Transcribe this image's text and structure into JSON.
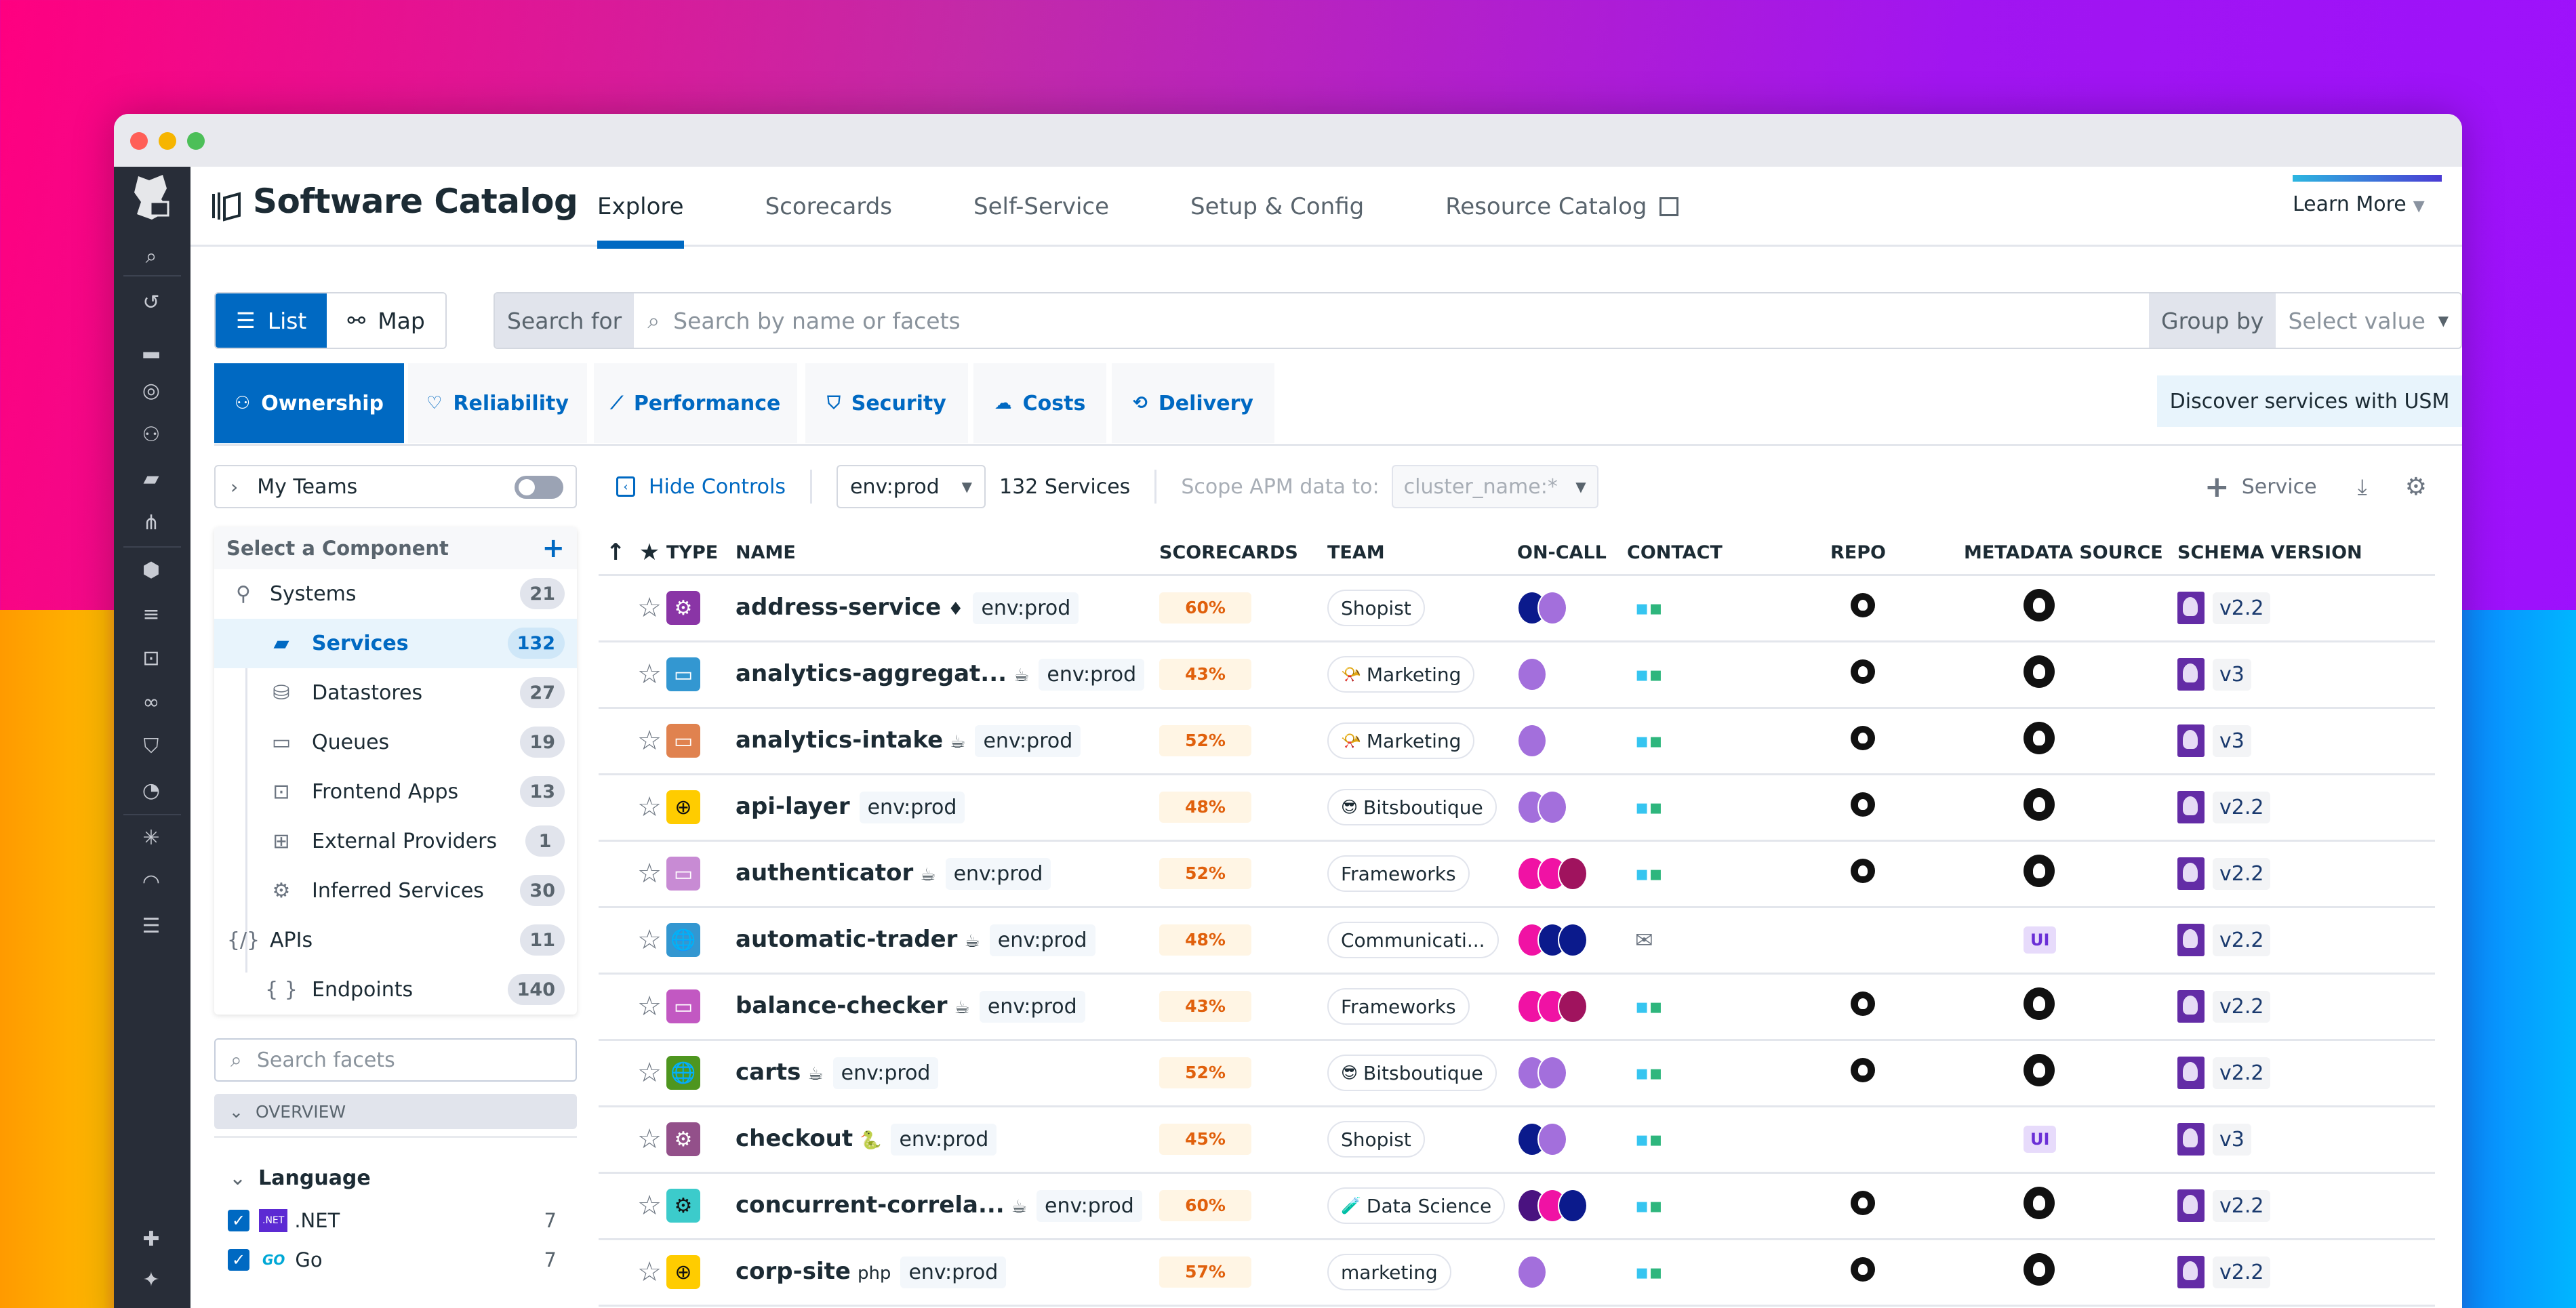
{
  "window": {
    "traffic_lights": [
      "close",
      "minimize",
      "maximize"
    ]
  },
  "nav": {
    "icons": [
      "search-icon",
      "history-icon",
      "dashboards-icon",
      "monitors-icon",
      "watchdog-icon",
      "software-catalog-icon",
      "pipelines-icon",
      "infrastructure-icon",
      "logs-icon",
      "frontend-icon",
      "synthetics-icon",
      "security-icon",
      "ci-icon",
      "bug-icon",
      "performance-icon",
      "observability-pipelines-icon",
      "integrations-icon",
      "sparkle-icon"
    ]
  },
  "header": {
    "title": "Software Catalog",
    "tabs": [
      {
        "label": "Explore",
        "active": true
      },
      {
        "label": "Scorecards"
      },
      {
        "label": "Self-Service"
      },
      {
        "label": "Setup & Config"
      },
      {
        "label": "Resource Catalog",
        "external": true
      }
    ],
    "learn_more": "Learn More"
  },
  "toolbar": {
    "view_list": "List",
    "view_map": "Map",
    "search_label": "Search for",
    "search_placeholder": "Search by name or facets",
    "group_by_label": "Group by",
    "group_by_placeholder": "Select value"
  },
  "category_tabs": [
    {
      "label": "Ownership",
      "icon": "people-icon",
      "active": true
    },
    {
      "label": "Reliability",
      "icon": "heartbeat-icon"
    },
    {
      "label": "Performance",
      "icon": "chart-line-icon"
    },
    {
      "label": "Security",
      "icon": "shield-icon"
    },
    {
      "label": "Costs",
      "icon": "cloud-dollar-icon"
    },
    {
      "label": "Delivery",
      "icon": "delivery-icon"
    }
  ],
  "discover_usm": "Discover services with USM",
  "left_panel": {
    "my_teams": "My Teams",
    "component_header": "Select a Component",
    "components": [
      {
        "label": "Systems",
        "count": "21",
        "level": 1,
        "icon": "hierarchy-icon"
      },
      {
        "label": "Services",
        "count": "132",
        "level": 2,
        "icon": "services-icon",
        "active": true
      },
      {
        "label": "Datastores",
        "count": "27",
        "level": 2,
        "icon": "database-icon"
      },
      {
        "label": "Queues",
        "count": "19",
        "level": 2,
        "icon": "queue-icon"
      },
      {
        "label": "Frontend Apps",
        "count": "13",
        "level": 2,
        "icon": "frontend-app-icon"
      },
      {
        "label": "External Providers",
        "count": "1",
        "level": 2,
        "icon": "external-provider-icon"
      },
      {
        "label": "Inferred Services",
        "count": "30",
        "level": 2,
        "icon": "gears-icon"
      },
      {
        "label": "APIs",
        "count": "11",
        "level": 1,
        "icon": "api-icon"
      },
      {
        "label": "Endpoints",
        "count": "140",
        "level": 2,
        "icon": "braces-icon"
      }
    ],
    "facet_search_placeholder": "Search facets",
    "overview": "OVERVIEW",
    "language_header": "Language",
    "languages": [
      {
        "label": ".NET",
        "badge": ".NET",
        "count": "7",
        "checked": true
      },
      {
        "label": "Go",
        "badge": "GO",
        "count": "7",
        "checked": true
      }
    ]
  },
  "controls": {
    "hide_controls": "Hide Controls",
    "env": "env:prod",
    "service_count": "132 Services",
    "scope_label": "Scope APM data to:",
    "scope_value": "cluster_name:*",
    "add_service": "Service"
  },
  "table": {
    "columns": [
      "",
      "",
      "TYPE",
      "NAME",
      "SCORECARDS",
      "TEAM",
      "ON-CALL",
      "CONTACT",
      "REPO",
      "METADATA SOURCE",
      "SCHEMA VERSION"
    ],
    "rows": [
      {
        "name": "address-service",
        "lang": "ruby",
        "env": "env:prod",
        "type_color": "#8a35a6",
        "type_icon": "gears",
        "score": "60%",
        "team": "Shopist",
        "team_emoji": "",
        "oncall": [
          "#0b1a8c",
          "#a36fdc"
        ],
        "contact": "slack",
        "repo": true,
        "metadata": "github",
        "schema": "v2.2"
      },
      {
        "name": "analytics-aggregat...",
        "lang": "java",
        "env": "env:prod",
        "type_color": "#3397d1",
        "type_icon": "queue",
        "score": "43%",
        "team": "Marketing",
        "team_emoji": "📯",
        "oncall": [
          "#a36fdc"
        ],
        "contact": "slack",
        "repo": true,
        "metadata": "github",
        "schema": "v3"
      },
      {
        "name": "analytics-intake",
        "lang": "java",
        "env": "env:prod",
        "type_color": "#e0824f",
        "type_icon": "queue",
        "score": "52%",
        "team": "Marketing",
        "team_emoji": "📯",
        "oncall": [
          "#a36fdc"
        ],
        "contact": "slack",
        "repo": true,
        "metadata": "github",
        "schema": "v3"
      },
      {
        "name": "api-layer",
        "lang": "",
        "env": "env:prod",
        "type_color": "#ffcc00",
        "type_icon": "globe-dark",
        "score": "48%",
        "team": "Bitsboutique",
        "team_emoji": "😎",
        "oncall": [
          "#a36fdc",
          "#a36fdc"
        ],
        "contact": "slack",
        "repo": true,
        "metadata": "github",
        "schema": "v2.2"
      },
      {
        "name": "authenticator",
        "lang": "java",
        "env": "env:prod",
        "type_color": "#c88bd4",
        "type_icon": "queue",
        "score": "52%",
        "team": "Frameworks",
        "team_emoji": "",
        "oncall": [
          "#f012a4",
          "#f012a4",
          "#a0135e"
        ],
        "contact": "slack",
        "repo": true,
        "metadata": "github",
        "schema": "v2.2"
      },
      {
        "name": "automatic-trader",
        "lang": "java",
        "env": "env:prod",
        "type_color": "#3397d1",
        "type_icon": "globe",
        "score": "48%",
        "team": "Communicati...",
        "team_emoji": "",
        "oncall": [
          "#f012a4",
          "#0b1a8c",
          "#0b1a8c"
        ],
        "contact": "mail",
        "repo": false,
        "metadata": "UI",
        "schema": "v2.2"
      },
      {
        "name": "balance-checker",
        "lang": "java",
        "env": "env:prod",
        "type_color": "#c258c2",
        "type_icon": "queue",
        "score": "43%",
        "team": "Frameworks",
        "team_emoji": "",
        "oncall": [
          "#f012a4",
          "#f012a4",
          "#a0135e"
        ],
        "contact": "slack",
        "repo": true,
        "metadata": "github",
        "schema": "v2.2"
      },
      {
        "name": "carts",
        "lang": "java",
        "env": "env:prod",
        "type_color": "#4e961f",
        "type_icon": "globe",
        "score": "52%",
        "team": "Bitsboutique",
        "team_emoji": "😎",
        "oncall": [
          "#a36fdc",
          "#a36fdc"
        ],
        "contact": "slack",
        "repo": true,
        "metadata": "github",
        "schema": "v2.2"
      },
      {
        "name": "checkout",
        "lang": "python",
        "env": "env:prod",
        "type_color": "#93508a",
        "type_icon": "gears",
        "score": "45%",
        "team": "Shopist",
        "team_emoji": "",
        "oncall": [
          "#0b1a8c",
          "#a36fdc"
        ],
        "contact": "slack",
        "repo": false,
        "metadata": "UI",
        "schema": "v3"
      },
      {
        "name": "concurrent-correla...",
        "lang": "java",
        "env": "env:prod",
        "type_color": "#3ccbcb",
        "type_icon": "gears-dark",
        "score": "60%",
        "team": "Data Science",
        "team_emoji": "🧪",
        "oncall": [
          "#4a1280",
          "#f012a4",
          "#0b1a8c"
        ],
        "contact": "slack",
        "repo": true,
        "metadata": "github",
        "schema": "v2.2"
      },
      {
        "name": "corp-site",
        "lang": "php",
        "env": "env:prod",
        "type_color": "#ffcc00",
        "type_icon": "globe-dark",
        "score": "57%",
        "team": "marketing",
        "team_emoji": "",
        "oncall": [
          "#a36fdc"
        ],
        "contact": "slack",
        "repo": true,
        "metadata": "github",
        "schema": "v2.2"
      }
    ]
  },
  "colors": {
    "accent": "#0069c2",
    "nav_bg": "#282d38",
    "score_bg": "#fff5e4",
    "score_text": "#e0600c"
  }
}
